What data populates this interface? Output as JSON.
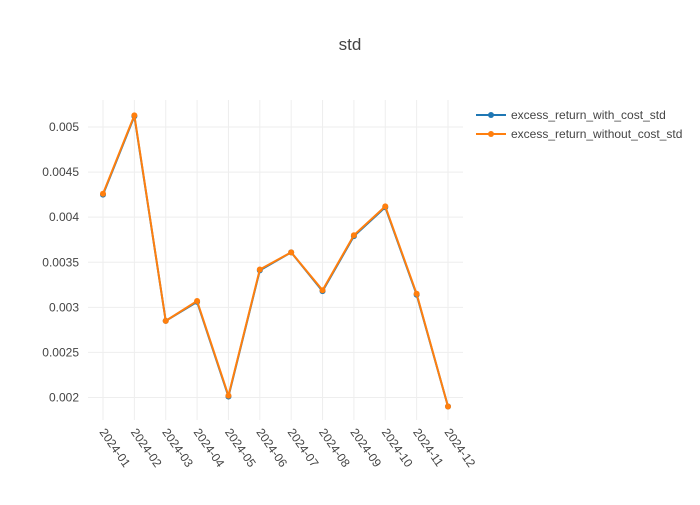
{
  "chart_data": {
    "type": "line",
    "title": "std",
    "xlabel": "",
    "ylabel": "",
    "categories": [
      "2024-01",
      "2024-02",
      "2024-03",
      "2024-04",
      "2024-05",
      "2024-06",
      "2024-07",
      "2024-08",
      "2024-09",
      "2024-10",
      "2024-11",
      "2024-12"
    ],
    "ylim": [
      0.00175,
      0.0053
    ],
    "yticks": [
      0.002,
      0.0025,
      0.003,
      0.0035,
      0.004,
      0.0045,
      0.005
    ],
    "ytick_labels": [
      "0.002",
      "0.0025",
      "0.003",
      "0.0035",
      "0.004",
      "0.0045",
      "0.005"
    ],
    "grid": true,
    "legend_position": "top-right",
    "series": [
      {
        "name": "excess_return_with_cost_std",
        "color": "#1f77b4",
        "values": [
          0.00425,
          0.00512,
          0.00285,
          0.00306,
          0.00201,
          0.00341,
          0.00361,
          0.00318,
          0.00379,
          0.00411,
          0.00314,
          0.0019
        ]
      },
      {
        "name": "excess_return_without_cost_std",
        "color": "#ff7f0e",
        "values": [
          0.00426,
          0.00513,
          0.00285,
          0.00307,
          0.00202,
          0.00342,
          0.00361,
          0.00319,
          0.0038,
          0.00412,
          0.00315,
          0.0019
        ]
      }
    ]
  }
}
